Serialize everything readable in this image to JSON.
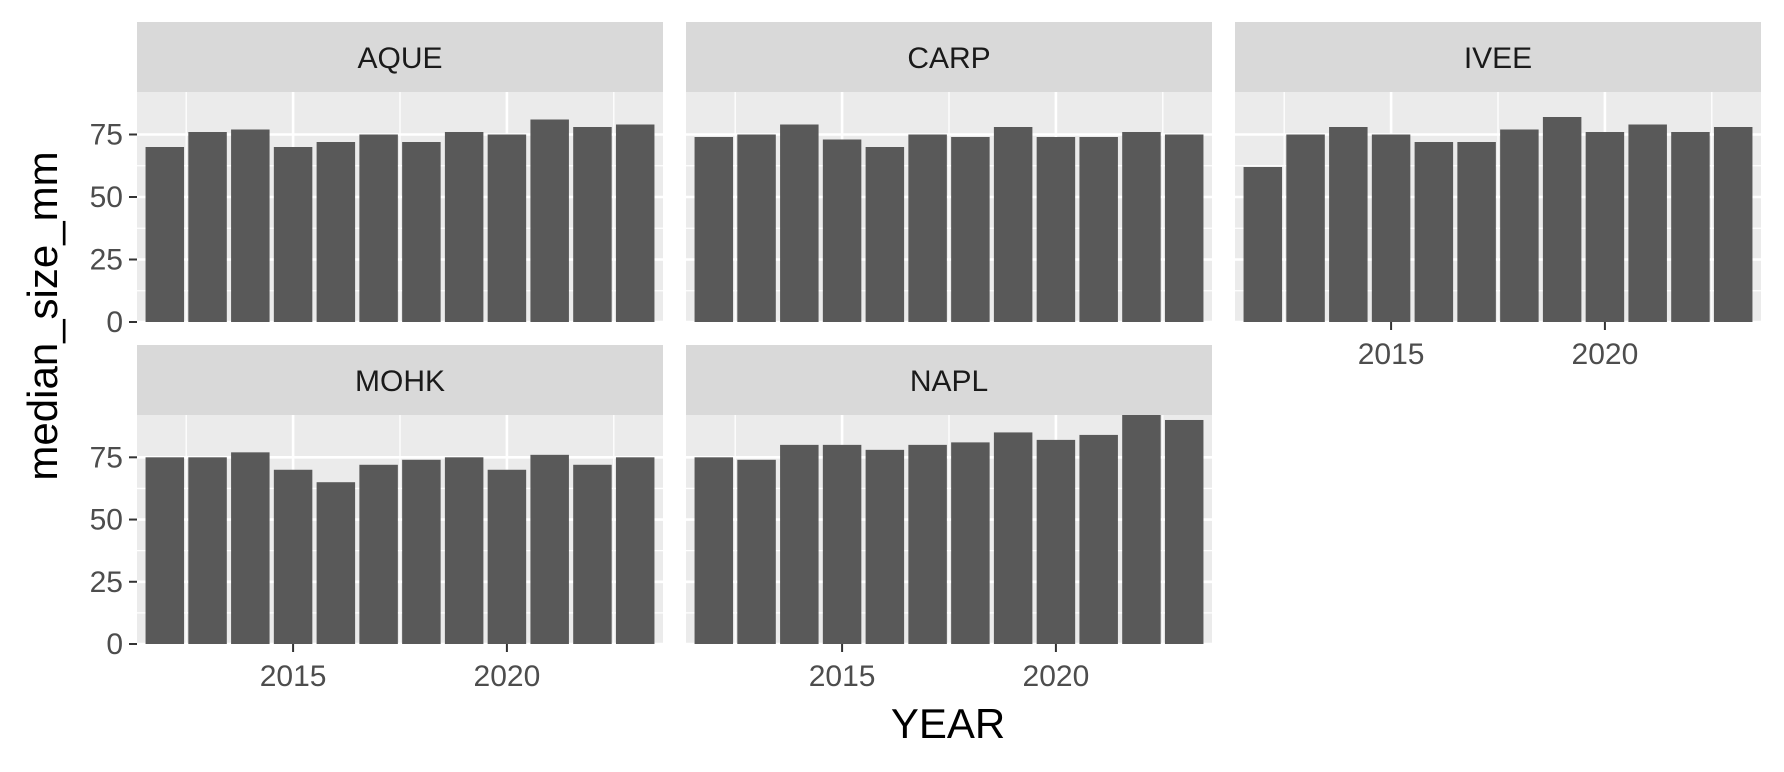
{
  "chart_data": {
    "type": "bar",
    "facet_layout": "3 columns, 2 rows (wrap)",
    "xlabel": "YEAR",
    "ylabel": "median_size_mm",
    "x_ticks": [
      2015,
      2020
    ],
    "y_ticks": [
      0,
      25,
      50,
      75
    ],
    "xlim": [
      2011.35,
      2023.65
    ],
    "ylim": [
      0,
      92
    ],
    "grid": true,
    "colors": {
      "bar": "#595959",
      "panel": "#ebebeb",
      "strip": "#d9d9d9",
      "grid": "#ffffff"
    },
    "panels": [
      {
        "name": "AQUE",
        "x": [
          2012,
          2013,
          2014,
          2015,
          2016,
          2017,
          2018,
          2019,
          2020,
          2021,
          2022,
          2023
        ],
        "values": [
          70,
          76,
          77,
          70,
          72,
          75,
          72,
          76,
          75,
          81,
          78,
          79
        ]
      },
      {
        "name": "CARP",
        "x": [
          2012,
          2013,
          2014,
          2015,
          2016,
          2017,
          2018,
          2019,
          2020,
          2021,
          2022,
          2023
        ],
        "values": [
          74,
          75,
          79,
          73,
          70,
          75,
          74,
          78,
          74,
          74,
          76,
          75
        ]
      },
      {
        "name": "IVEE",
        "x": [
          2012,
          2013,
          2014,
          2015,
          2016,
          2017,
          2018,
          2019,
          2020,
          2021,
          2022,
          2023
        ],
        "values": [
          62,
          75,
          78,
          75,
          72,
          72,
          77,
          82,
          76,
          79,
          76,
          78
        ]
      },
      {
        "name": "MOHK",
        "x": [
          2012,
          2013,
          2014,
          2015,
          2016,
          2017,
          2018,
          2019,
          2020,
          2021,
          2022,
          2023
        ],
        "values": [
          75,
          75,
          77,
          70,
          65,
          72,
          74,
          75,
          70,
          76,
          72,
          75
        ]
      },
      {
        "name": "NAPL",
        "x": [
          2012,
          2013,
          2014,
          2015,
          2016,
          2017,
          2018,
          2019,
          2020,
          2021,
          2022,
          2023
        ],
        "values": [
          75,
          74,
          80,
          80,
          78,
          80,
          81,
          85,
          82,
          84,
          92,
          90
        ]
      }
    ]
  }
}
